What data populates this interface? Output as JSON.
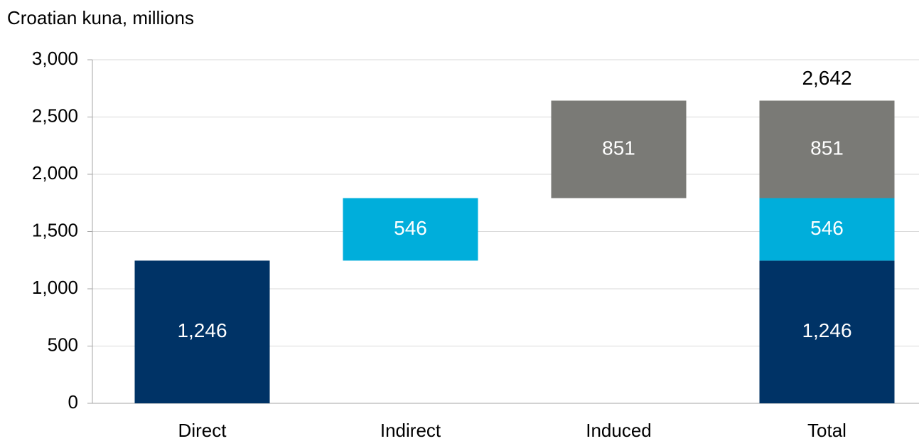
{
  "chart_data": {
    "type": "waterfall",
    "y_label": "Croatian kuna, millions",
    "categories": [
      "Direct",
      "Indirect",
      "Induced"
    ],
    "values": [
      1246,
      546,
      851
    ],
    "value_labels": [
      "1,246",
      "546",
      "851"
    ],
    "colors": [
      "#003366",
      "#00aedb",
      "#7a7a76"
    ],
    "total_category": "Total",
    "total_value": 2642,
    "total_label": "2,642",
    "ylim": [
      0,
      3000
    ],
    "yticks": [
      0,
      500,
      {
        "value": 1000,
        "label": "1,000"
      },
      {
        "value": 1500,
        "label": "1,500"
      },
      {
        "value": 2000,
        "label": "2,000"
      },
      {
        "value": 2500,
        "label": "2,500"
      },
      {
        "value": 3000,
        "label": "3,000"
      }
    ],
    "grid": true
  }
}
